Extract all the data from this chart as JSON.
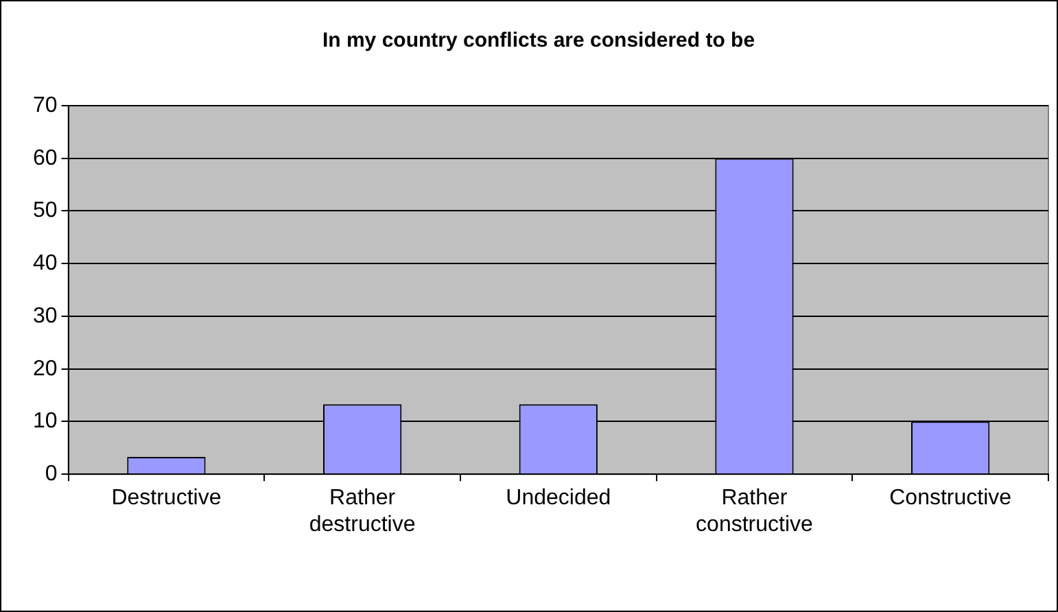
{
  "chart_data": {
    "type": "bar",
    "title": "In my country conflicts are considered to be",
    "categories": [
      "Destructive",
      "Rather destructive",
      "Undecided",
      "Rather constructive",
      "Constructive"
    ],
    "values": [
      3.3,
      13.3,
      13.3,
      60,
      10
    ],
    "color": "#9999ff",
    "ylim": [
      0,
      70
    ],
    "yticks": [
      0,
      10,
      20,
      30,
      40,
      50,
      60,
      70
    ],
    "grid": "y"
  }
}
